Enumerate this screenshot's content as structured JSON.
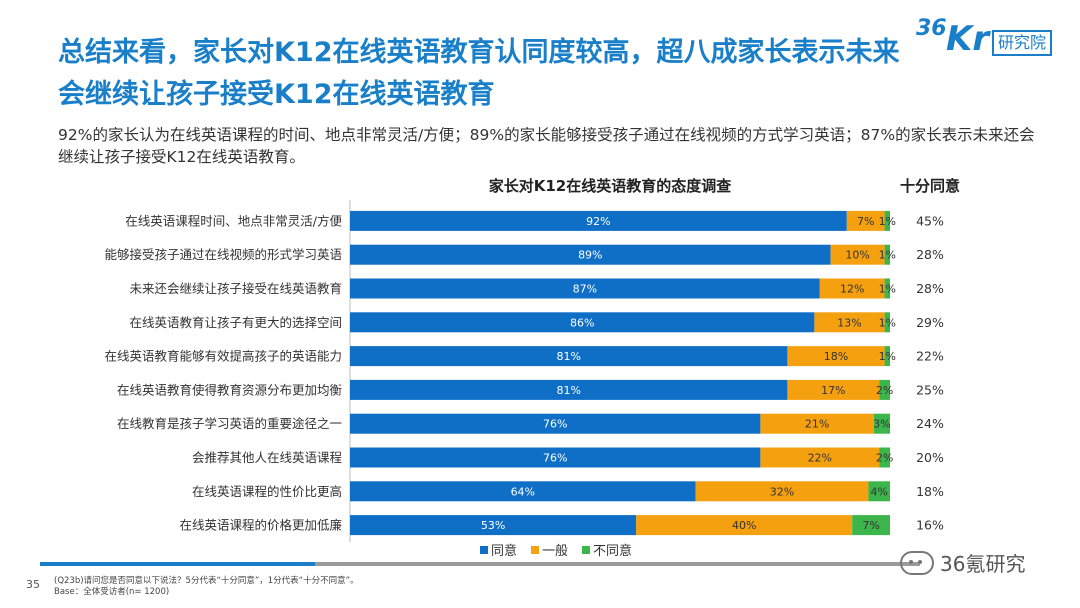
{
  "title": "总结来看，家长对K12在线英语教育认同度较高，超八成家长表示未来会继续让孩子接受K12在线英语教育",
  "logo": {
    "num": "36",
    "kr": "Kr",
    "box": "研究院"
  },
  "summary": "92%的家长认为在线英语课程的时间、地点非常灵活/方便；89%的家长能够接受孩子通过在线视频的方式学习英语；87%的家长表示未来还会继续让孩子接受K12在线英语教育。",
  "colors": {
    "agree": "#0f6fc6",
    "neutral": "#f5a10f",
    "disagree": "#3cb54a",
    "brand": "#1a7fc9"
  },
  "chart_data": {
    "type": "bar",
    "orientation": "horizontal-stacked",
    "title": "家长对K12在线英语教育的态度调查",
    "column_header": "十分同意",
    "categories": [
      "在线英语课程时间、地点非常灵活/方便",
      "能够接受孩子通过在线视频的形式学习英语",
      "未来还会继续让孩子接受在线英语教育",
      "在线英语教育让孩子有更大的选择空间",
      "在线英语教育能够有效提高孩子的英语能力",
      "在线英语教育使得教育资源分布更加均衡",
      "在线教育是孩子学习英语的重要途径之一",
      "会推荐其他人在线英语课程",
      "在线英语课程的性价比更高",
      "在线英语课程的价格更加低廉"
    ],
    "series": [
      {
        "name": "同意",
        "values": [
          92,
          89,
          87,
          86,
          81,
          81,
          76,
          76,
          64,
          53
        ]
      },
      {
        "name": "一般",
        "values": [
          7,
          10,
          12,
          13,
          18,
          17,
          21,
          22,
          32,
          40
        ]
      },
      {
        "name": "不同意",
        "values": [
          1,
          1,
          1,
          1,
          1,
          2,
          3,
          2,
          4,
          7
        ]
      }
    ],
    "very_agree": [
      45,
      28,
      28,
      29,
      22,
      25,
      24,
      20,
      18,
      16
    ],
    "xlim": [
      0,
      100
    ],
    "value_suffix": "%"
  },
  "legend": {
    "agree": "同意",
    "neutral": "一般",
    "disagree": "不同意"
  },
  "footer": {
    "page_number": "35",
    "note_line1": "(Q23b)请问您是否同意以下说法？5分代表“十分同意”，1分代表“十分不同意”。",
    "note_line2": "Base：全体受访者(n= 1200)",
    "watermark": "36氪研究"
  }
}
